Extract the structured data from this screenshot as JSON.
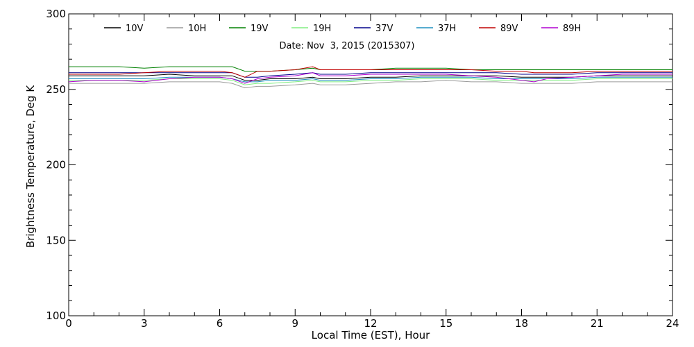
{
  "chart_data": {
    "type": "line",
    "title": "",
    "subtitle": "Date: Nov  3, 2015 (2015307)",
    "xlabel": "Local Time (EST), Hour",
    "ylabel": "Brightness Temperature, Deg K",
    "xlim": [
      0,
      24
    ],
    "ylim": [
      100,
      300
    ],
    "xticks": [
      0,
      3,
      6,
      9,
      12,
      15,
      18,
      21,
      24
    ],
    "yticks": [
      100,
      150,
      200,
      250,
      300
    ],
    "grid": false,
    "legend_position": "top",
    "x": [
      0,
      1,
      2,
      3,
      4,
      5,
      6,
      6.5,
      7,
      7.5,
      8,
      9,
      9.7,
      10,
      11,
      12,
      13,
      14,
      15,
      16,
      17,
      18,
      18.5,
      19,
      20,
      21,
      22,
      23,
      24
    ],
    "series": [
      {
        "name": "10V",
        "color": "#000000",
        "values": [
          259,
          259,
          259,
          259,
          260,
          259,
          259,
          259,
          256,
          256,
          257,
          257,
          258,
          257,
          257,
          258,
          258,
          259,
          259,
          259,
          259,
          258,
          258,
          258,
          258,
          259,
          259,
          259,
          259
        ]
      },
      {
        "name": "10H",
        "color": "#9a9a9a",
        "values": [
          254,
          254,
          254,
          254,
          255,
          255,
          255,
          254,
          251,
          252,
          252,
          253,
          254,
          253,
          253,
          254,
          255,
          255,
          256,
          255,
          255,
          254,
          254,
          254,
          254,
          255,
          255,
          255,
          255
        ]
      },
      {
        "name": "19V",
        "color": "#008000",
        "values": [
          265,
          265,
          265,
          264,
          265,
          265,
          265,
          265,
          262,
          262,
          262,
          263,
          264,
          263,
          263,
          263,
          264,
          264,
          264,
          263,
          263,
          263,
          263,
          263,
          263,
          263,
          263,
          263,
          263
        ]
      },
      {
        "name": "19H",
        "color": "#80ee80",
        "values": [
          256,
          256,
          256,
          256,
          257,
          257,
          257,
          256,
          253,
          254,
          254,
          255,
          256,
          255,
          255,
          256,
          256,
          257,
          257,
          257,
          256,
          256,
          256,
          256,
          256,
          257,
          257,
          257,
          257
        ]
      },
      {
        "name": "37V",
        "color": "#00008b",
        "values": [
          261,
          261,
          261,
          261,
          261,
          261,
          261,
          261,
          258,
          258,
          259,
          260,
          261,
          260,
          260,
          261,
          261,
          261,
          261,
          261,
          261,
          260,
          260,
          260,
          260,
          261,
          261,
          261,
          261
        ]
      },
      {
        "name": "37H",
        "color": "#1e90c0",
        "values": [
          257,
          257,
          257,
          257,
          258,
          258,
          258,
          257,
          255,
          255,
          256,
          256,
          257,
          256,
          256,
          257,
          257,
          258,
          258,
          258,
          257,
          257,
          257,
          257,
          257,
          258,
          258,
          258,
          258
        ]
      },
      {
        "name": "89V",
        "color": "#c00000",
        "values": [
          260,
          260,
          260,
          261,
          262,
          262,
          262,
          261,
          258,
          262,
          262,
          263,
          265,
          263,
          263,
          263,
          263,
          263,
          263,
          263,
          262,
          262,
          261,
          261,
          261,
          262,
          262,
          262,
          262
        ]
      },
      {
        "name": "89H",
        "color": "#b000d0",
        "values": [
          255,
          256,
          256,
          255,
          257,
          258,
          258,
          257,
          254,
          257,
          258,
          259,
          261,
          259,
          259,
          260,
          260,
          260,
          260,
          259,
          258,
          256,
          255,
          257,
          258,
          259,
          260,
          260,
          260
        ]
      }
    ]
  }
}
